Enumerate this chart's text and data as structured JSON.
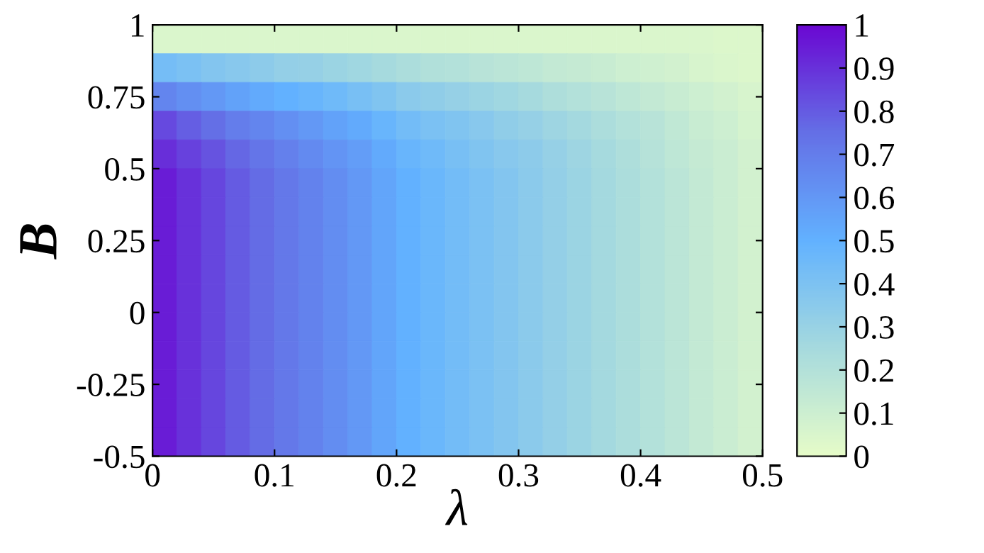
{
  "chart_data": {
    "type": "heatmap",
    "xlabel": "λ",
    "ylabel": "B",
    "x": [
      0.01,
      0.03,
      0.05,
      0.07,
      0.09,
      0.11,
      0.13,
      0.15,
      0.17,
      0.19,
      0.21,
      0.23,
      0.25,
      0.27,
      0.29,
      0.31,
      0.33,
      0.35,
      0.37,
      0.39,
      0.41,
      0.43,
      0.45,
      0.47,
      0.49
    ],
    "y": [
      0.95,
      0.85,
      0.75,
      0.65,
      0.55,
      0.45,
      0.35,
      0.25,
      0.15,
      0.05,
      -0.05,
      -0.15,
      -0.25,
      -0.35,
      -0.45
    ],
    "xlim": [
      0,
      0.5
    ],
    "xticks": [
      0,
      0.1,
      0.2,
      0.3,
      0.4,
      0.5
    ],
    "ylim": [
      -0.5,
      1
    ],
    "yticks": [
      {
        "value": -0.5,
        "label": "-0.5"
      },
      {
        "value": -0.25,
        "label": "-0.25"
      },
      0,
      0.25,
      0.5,
      0.75,
      1
    ],
    "clim": [
      0,
      1
    ],
    "cticks": [
      0,
      0.1,
      0.2,
      0.3,
      0.4,
      0.5,
      0.6,
      0.7,
      0.8,
      0.9,
      1
    ],
    "colors": [
      "#e6fcc8",
      "#a6dade",
      "#62b2ff",
      "#6470e6",
      "#6a08d2"
    ],
    "cells": [
      [
        0.05,
        0.05,
        0.05,
        0.05,
        0.05,
        0.05,
        0.05,
        0.05,
        0.05,
        0.05,
        0.05,
        0.05,
        0.05,
        0.05,
        0.05,
        0.05,
        0.05,
        0.05,
        0.05,
        0.05,
        0.05,
        0.05,
        0.05,
        0.04,
        0.04
      ],
      [
        0.43,
        0.41,
        0.38,
        0.36,
        0.34,
        0.32,
        0.31,
        0.29,
        0.27,
        0.25,
        0.23,
        0.21,
        0.2,
        0.18,
        0.17,
        0.16,
        0.14,
        0.13,
        0.12,
        0.1,
        0.09,
        0.08,
        0.06,
        0.05,
        0.04
      ],
      [
        0.67,
        0.63,
        0.6,
        0.56,
        0.53,
        0.5,
        0.48,
        0.45,
        0.42,
        0.39,
        0.35,
        0.33,
        0.31,
        0.29,
        0.27,
        0.25,
        0.22,
        0.2,
        0.18,
        0.16,
        0.14,
        0.12,
        0.1,
        0.08,
        0.06
      ],
      [
        0.84,
        0.79,
        0.75,
        0.7,
        0.67,
        0.63,
        0.6,
        0.56,
        0.53,
        0.48,
        0.44,
        0.41,
        0.39,
        0.36,
        0.33,
        0.31,
        0.28,
        0.26,
        0.23,
        0.2,
        0.18,
        0.15,
        0.12,
        0.1,
        0.07
      ],
      [
        0.91,
        0.86,
        0.82,
        0.77,
        0.73,
        0.69,
        0.65,
        0.61,
        0.58,
        0.53,
        0.48,
        0.45,
        0.42,
        0.39,
        0.36,
        0.34,
        0.31,
        0.28,
        0.25,
        0.22,
        0.19,
        0.16,
        0.13,
        0.11,
        0.08
      ],
      [
        0.95,
        0.9,
        0.85,
        0.8,
        0.76,
        0.72,
        0.68,
        0.64,
        0.6,
        0.55,
        0.5,
        0.47,
        0.44,
        0.41,
        0.38,
        0.35,
        0.32,
        0.29,
        0.26,
        0.23,
        0.2,
        0.17,
        0.14,
        0.11,
        0.08
      ],
      [
        0.95,
        0.9,
        0.85,
        0.8,
        0.76,
        0.72,
        0.68,
        0.64,
        0.6,
        0.55,
        0.5,
        0.47,
        0.44,
        0.41,
        0.38,
        0.35,
        0.32,
        0.29,
        0.26,
        0.23,
        0.2,
        0.17,
        0.14,
        0.11,
        0.08
      ],
      [
        0.95,
        0.9,
        0.85,
        0.8,
        0.76,
        0.72,
        0.68,
        0.64,
        0.6,
        0.55,
        0.5,
        0.47,
        0.44,
        0.41,
        0.38,
        0.35,
        0.32,
        0.29,
        0.26,
        0.23,
        0.2,
        0.17,
        0.14,
        0.11,
        0.08
      ],
      [
        0.95,
        0.9,
        0.85,
        0.8,
        0.76,
        0.72,
        0.68,
        0.64,
        0.6,
        0.55,
        0.5,
        0.47,
        0.44,
        0.41,
        0.38,
        0.35,
        0.32,
        0.29,
        0.26,
        0.23,
        0.2,
        0.17,
        0.14,
        0.11,
        0.08
      ],
      [
        0.95,
        0.9,
        0.85,
        0.8,
        0.76,
        0.72,
        0.68,
        0.64,
        0.6,
        0.55,
        0.5,
        0.47,
        0.44,
        0.41,
        0.38,
        0.35,
        0.32,
        0.29,
        0.26,
        0.23,
        0.2,
        0.17,
        0.14,
        0.11,
        0.08
      ],
      [
        0.95,
        0.9,
        0.85,
        0.8,
        0.76,
        0.72,
        0.68,
        0.64,
        0.6,
        0.55,
        0.5,
        0.47,
        0.44,
        0.41,
        0.38,
        0.35,
        0.32,
        0.29,
        0.26,
        0.23,
        0.2,
        0.17,
        0.14,
        0.11,
        0.08
      ],
      [
        0.95,
        0.9,
        0.85,
        0.8,
        0.76,
        0.72,
        0.68,
        0.64,
        0.6,
        0.55,
        0.5,
        0.47,
        0.44,
        0.41,
        0.38,
        0.35,
        0.32,
        0.29,
        0.26,
        0.23,
        0.2,
        0.17,
        0.14,
        0.11,
        0.08
      ],
      [
        0.95,
        0.9,
        0.85,
        0.8,
        0.76,
        0.72,
        0.68,
        0.64,
        0.6,
        0.55,
        0.5,
        0.47,
        0.44,
        0.41,
        0.38,
        0.35,
        0.32,
        0.29,
        0.26,
        0.23,
        0.2,
        0.17,
        0.14,
        0.11,
        0.08
      ],
      [
        0.95,
        0.9,
        0.85,
        0.8,
        0.76,
        0.72,
        0.68,
        0.64,
        0.6,
        0.55,
        0.5,
        0.47,
        0.44,
        0.41,
        0.38,
        0.35,
        0.32,
        0.29,
        0.26,
        0.23,
        0.2,
        0.17,
        0.14,
        0.11,
        0.08
      ],
      [
        0.95,
        0.9,
        0.85,
        0.8,
        0.76,
        0.72,
        0.68,
        0.64,
        0.6,
        0.55,
        0.5,
        0.47,
        0.44,
        0.41,
        0.38,
        0.35,
        0.32,
        0.29,
        0.26,
        0.23,
        0.2,
        0.17,
        0.14,
        0.11,
        0.08
      ]
    ]
  }
}
